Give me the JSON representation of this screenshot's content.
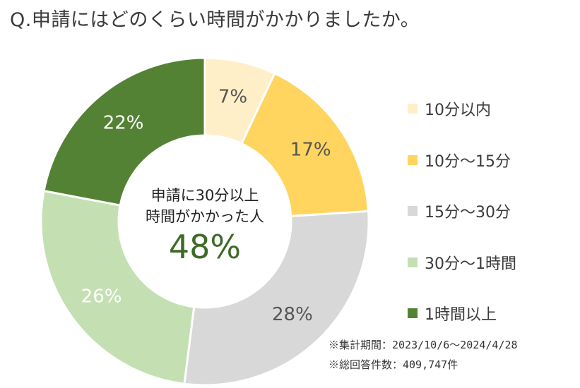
{
  "title": "Q.申請にはどのくらい時間がかかりましたか。",
  "center": {
    "line1": "申請に30分以上",
    "line2": "時間がかかった人",
    "value": "48%"
  },
  "notes": {
    "period": "※集計期間：2023/10/6～2024/4/28",
    "total": "※総回答件数：409,747件"
  },
  "chart_data": {
    "type": "pie",
    "subtype": "donut",
    "slices": [
      {
        "label": "10分以内",
        "value": 7,
        "value_label": "7%",
        "color": "#ffefc8",
        "text_color": "#555555"
      },
      {
        "label": "10分～15分",
        "value": 17,
        "value_label": "17%",
        "color": "#ffd45f",
        "text_color": "#555555"
      },
      {
        "label": "15分～30分",
        "value": 28,
        "value_label": "28%",
        "color": "#d8d8d8",
        "text_color": "#555555"
      },
      {
        "label": "30分～1時間",
        "value": 26,
        "value_label": "26%",
        "color": "#c4e0b3",
        "text_color": "#ffffff"
      },
      {
        "label": "1時間以上",
        "value": 22,
        "value_label": "22%",
        "color": "#548235",
        "text_color": "#ffffff"
      }
    ],
    "legend_position": "right"
  }
}
